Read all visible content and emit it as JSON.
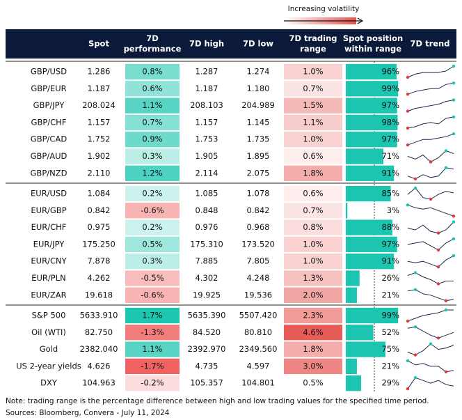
{
  "legend": {
    "label": "Increasing volatility"
  },
  "header": {
    "columns": [
      [
        "Spot"
      ],
      [
        "7D",
        "performance"
      ],
      [
        "7D high"
      ],
      [
        "7D low"
      ],
      [
        "7D trading",
        "range"
      ],
      [
        "Spot position",
        "within range"
      ],
      [
        "7D trend"
      ]
    ]
  },
  "groups": [
    {
      "rows": [
        {
          "label": "GBP/USD",
          "spot": "1.286",
          "perf": {
            "value": 0.8,
            "label": "0.8%"
          },
          "high": "1.287",
          "low": "1.274",
          "range": {
            "value": 1.0,
            "label": "1.0%"
          },
          "position": {
            "value": 96,
            "label": "96%"
          },
          "trend": [
            2,
            4,
            5,
            5,
            5,
            6,
            9
          ]
        },
        {
          "label": "GBP/EUR",
          "spot": "1.187",
          "perf": {
            "value": 0.6,
            "label": "0.6%"
          },
          "high": "1.187",
          "low": "1.180",
          "range": {
            "value": 0.7,
            "label": "0.7%"
          },
          "position": {
            "value": 99,
            "label": "99%"
          },
          "trend": [
            1,
            3,
            4,
            5,
            5,
            8,
            9
          ]
        },
        {
          "label": "GBP/JPY",
          "spot": "208.024",
          "perf": {
            "value": 1.1,
            "label": "1.1%"
          },
          "high": "208.103",
          "low": "204.989",
          "range": {
            "value": 1.5,
            "label": "1.5%"
          },
          "position": {
            "value": 97,
            "label": "97%"
          },
          "trend": [
            1,
            3,
            4,
            5,
            6,
            8,
            9
          ]
        },
        {
          "label": "GBP/CHF",
          "spot": "1.157",
          "perf": {
            "value": 0.7,
            "label": "0.7%"
          },
          "high": "1.157",
          "low": "1.145",
          "range": {
            "value": 1.1,
            "label": "1.1%"
          },
          "position": {
            "value": 98,
            "label": "98%"
          },
          "trend": [
            1,
            2,
            4,
            5,
            4,
            8,
            9
          ]
        },
        {
          "label": "GBP/CAD",
          "spot": "1.752",
          "perf": {
            "value": 0.9,
            "label": "0.9%"
          },
          "high": "1.753",
          "low": "1.735",
          "range": {
            "value": 1.0,
            "label": "1.0%"
          },
          "position": {
            "value": 97,
            "label": "97%"
          },
          "trend": [
            1,
            3,
            5,
            5,
            6,
            7,
            9
          ]
        },
        {
          "label": "GBP/AUD",
          "spot": "1.902",
          "perf": {
            "value": 0.3,
            "label": "0.3%"
          },
          "high": "1.905",
          "low": "1.895",
          "range": {
            "value": 0.6,
            "label": "0.6%"
          },
          "position": {
            "value": 71,
            "label": "71%"
          },
          "trend": [
            5,
            3,
            6,
            1,
            4,
            9,
            7
          ]
        },
        {
          "label": "GBP/NZD",
          "spot": "2.110",
          "perf": {
            "value": 1.2,
            "label": "1.2%"
          },
          "high": "2.114",
          "low": "2.075",
          "range": {
            "value": 1.8,
            "label": "1.8%"
          },
          "position": {
            "value": 91,
            "label": "91%"
          },
          "trend": [
            3,
            1,
            4,
            2,
            3,
            9,
            8
          ]
        }
      ]
    },
    {
      "rows": [
        {
          "label": "EUR/USD",
          "spot": "1.084",
          "perf": {
            "value": 0.2,
            "label": "0.2%"
          },
          "high": "1.085",
          "low": "1.078",
          "range": {
            "value": 0.6,
            "label": "0.6%"
          },
          "position": {
            "value": 85,
            "label": "85%"
          },
          "trend": [
            5,
            9,
            3,
            2,
            5,
            7,
            6
          ]
        },
        {
          "label": "EUR/GBP",
          "spot": "0.842",
          "perf": {
            "value": -0.6,
            "label": "-0.6%"
          },
          "high": "0.848",
          "low": "0.842",
          "range": {
            "value": 0.7,
            "label": "0.7%"
          },
          "position": {
            "value": 3,
            "label": "3%"
          },
          "trend": [
            9,
            7,
            6,
            7,
            5,
            3,
            1
          ]
        },
        {
          "label": "EUR/CHF",
          "spot": "0.975",
          "perf": {
            "value": 0.2,
            "label": "0.2%"
          },
          "high": "0.976",
          "low": "0.968",
          "range": {
            "value": 0.8,
            "label": "0.8%"
          },
          "position": {
            "value": 88,
            "label": "88%"
          },
          "trend": [
            5,
            4,
            7,
            3,
            2,
            4,
            9
          ]
        },
        {
          "label": "EUR/JPY",
          "spot": "175.250",
          "perf": {
            "value": 0.5,
            "label": "0.5%"
          },
          "high": "175.310",
          "low": "173.520",
          "range": {
            "value": 1.0,
            "label": "1.0%"
          },
          "position": {
            "value": 97,
            "label": "97%"
          },
          "trend": [
            5,
            6,
            7,
            4,
            1,
            6,
            9
          ]
        },
        {
          "label": "EUR/CNY",
          "spot": "7.878",
          "perf": {
            "value": 0.3,
            "label": "0.3%"
          },
          "high": "7.885",
          "low": "7.805",
          "range": {
            "value": 1.0,
            "label": "1.0%"
          },
          "position": {
            "value": 91,
            "label": "91%"
          },
          "trend": [
            5,
            4,
            5,
            3,
            1,
            6,
            9
          ]
        },
        {
          "label": "EUR/PLN",
          "spot": "4.262",
          "perf": {
            "value": -0.5,
            "label": "-0.5%"
          },
          "high": "4.302",
          "low": "4.248",
          "range": {
            "value": 1.3,
            "label": "1.3%"
          },
          "position": {
            "value": 26,
            "label": "26%"
          },
          "trend": [
            7,
            9,
            6,
            4,
            1,
            3,
            3
          ]
        },
        {
          "label": "EUR/ZAR",
          "spot": "19.618",
          "perf": {
            "value": -0.6,
            "label": "-0.6%"
          },
          "high": "19.925",
          "low": "19.536",
          "range": {
            "value": 2.0,
            "label": "2.0%"
          },
          "position": {
            "value": 21,
            "label": "21%"
          },
          "trend": [
            8,
            9,
            6,
            5,
            3,
            1,
            2
          ]
        }
      ]
    },
    {
      "rows": [
        {
          "label": "S&P 500",
          "spot": "5633.910",
          "perf": {
            "value": 1.7,
            "label": "1.7%"
          },
          "high": "5635.390",
          "low": "5507.420",
          "range": {
            "value": 2.3,
            "label": "2.3%"
          },
          "position": {
            "value": 99,
            "label": "99%"
          },
          "trend": [
            1,
            3,
            5,
            6,
            7,
            9,
            9
          ]
        },
        {
          "label": "Oil (WTI)",
          "spot": "82.750",
          "perf": {
            "value": -1.3,
            "label": "-1.3%"
          },
          "high": "84.520",
          "low": "80.810",
          "range": {
            "value": 4.6,
            "label": "4.6%"
          },
          "position": {
            "value": 52,
            "label": "52%"
          },
          "trend": [
            8,
            9,
            6,
            3,
            1,
            3,
            5
          ]
        },
        {
          "label": "Gold",
          "spot": "2382.040",
          "perf": {
            "value": 1.1,
            "label": "1.1%"
          },
          "high": "2392.970",
          "low": "2349.560",
          "range": {
            "value": 1.8,
            "label": "1.8%"
          },
          "position": {
            "value": 75,
            "label": "75%"
          },
          "trend": [
            3,
            1,
            4,
            9,
            5,
            6,
            8
          ]
        },
        {
          "label": "US 2-year yields",
          "spot": "4.626",
          "perf": {
            "value": -1.7,
            "label": "-1.7%"
          },
          "high": "4.735",
          "low": "4.597",
          "range": {
            "value": 3.0,
            "label": "3.0%"
          },
          "position": {
            "value": 21,
            "label": "21%"
          },
          "trend": [
            9,
            6,
            7,
            5,
            5,
            1,
            2
          ]
        },
        {
          "label": "DXY",
          "spot": "104.963",
          "perf": {
            "value": -0.2,
            "label": "-0.2%"
          },
          "high": "105.357",
          "low": "104.801",
          "range": {
            "value": 0.5,
            "label": "0.5%"
          },
          "position": {
            "value": 29,
            "label": "29%"
          },
          "trend": [
            1,
            9,
            7,
            5,
            7,
            4,
            3
          ]
        }
      ]
    }
  ],
  "footer": {
    "note": "Note: trading range is the percentage difference between high and low trading values for the specified time period.",
    "sources": "Sources: Bloomberg, Convera - July 11, 2024"
  }
}
